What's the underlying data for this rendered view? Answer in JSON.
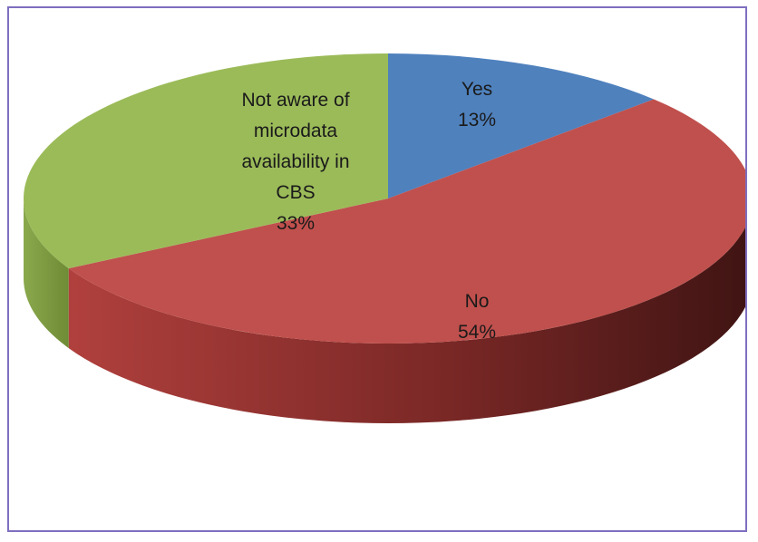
{
  "chart_data": {
    "type": "pie",
    "title": "",
    "slices": [
      {
        "label": "Yes",
        "value": 13,
        "percent_label": "13%",
        "color": "#4f81bd",
        "side_color": "#2c4d75"
      },
      {
        "label": "No",
        "value": 54,
        "percent_label": "54%",
        "color": "#c0504d",
        "side_color": "#6e2624"
      },
      {
        "label": "Not aware of microdata availability in CBS",
        "value": 33,
        "percent_label": "33%",
        "color": "#9bbb59",
        "side_color": "#5f7a2e"
      }
    ],
    "legend": "none"
  }
}
